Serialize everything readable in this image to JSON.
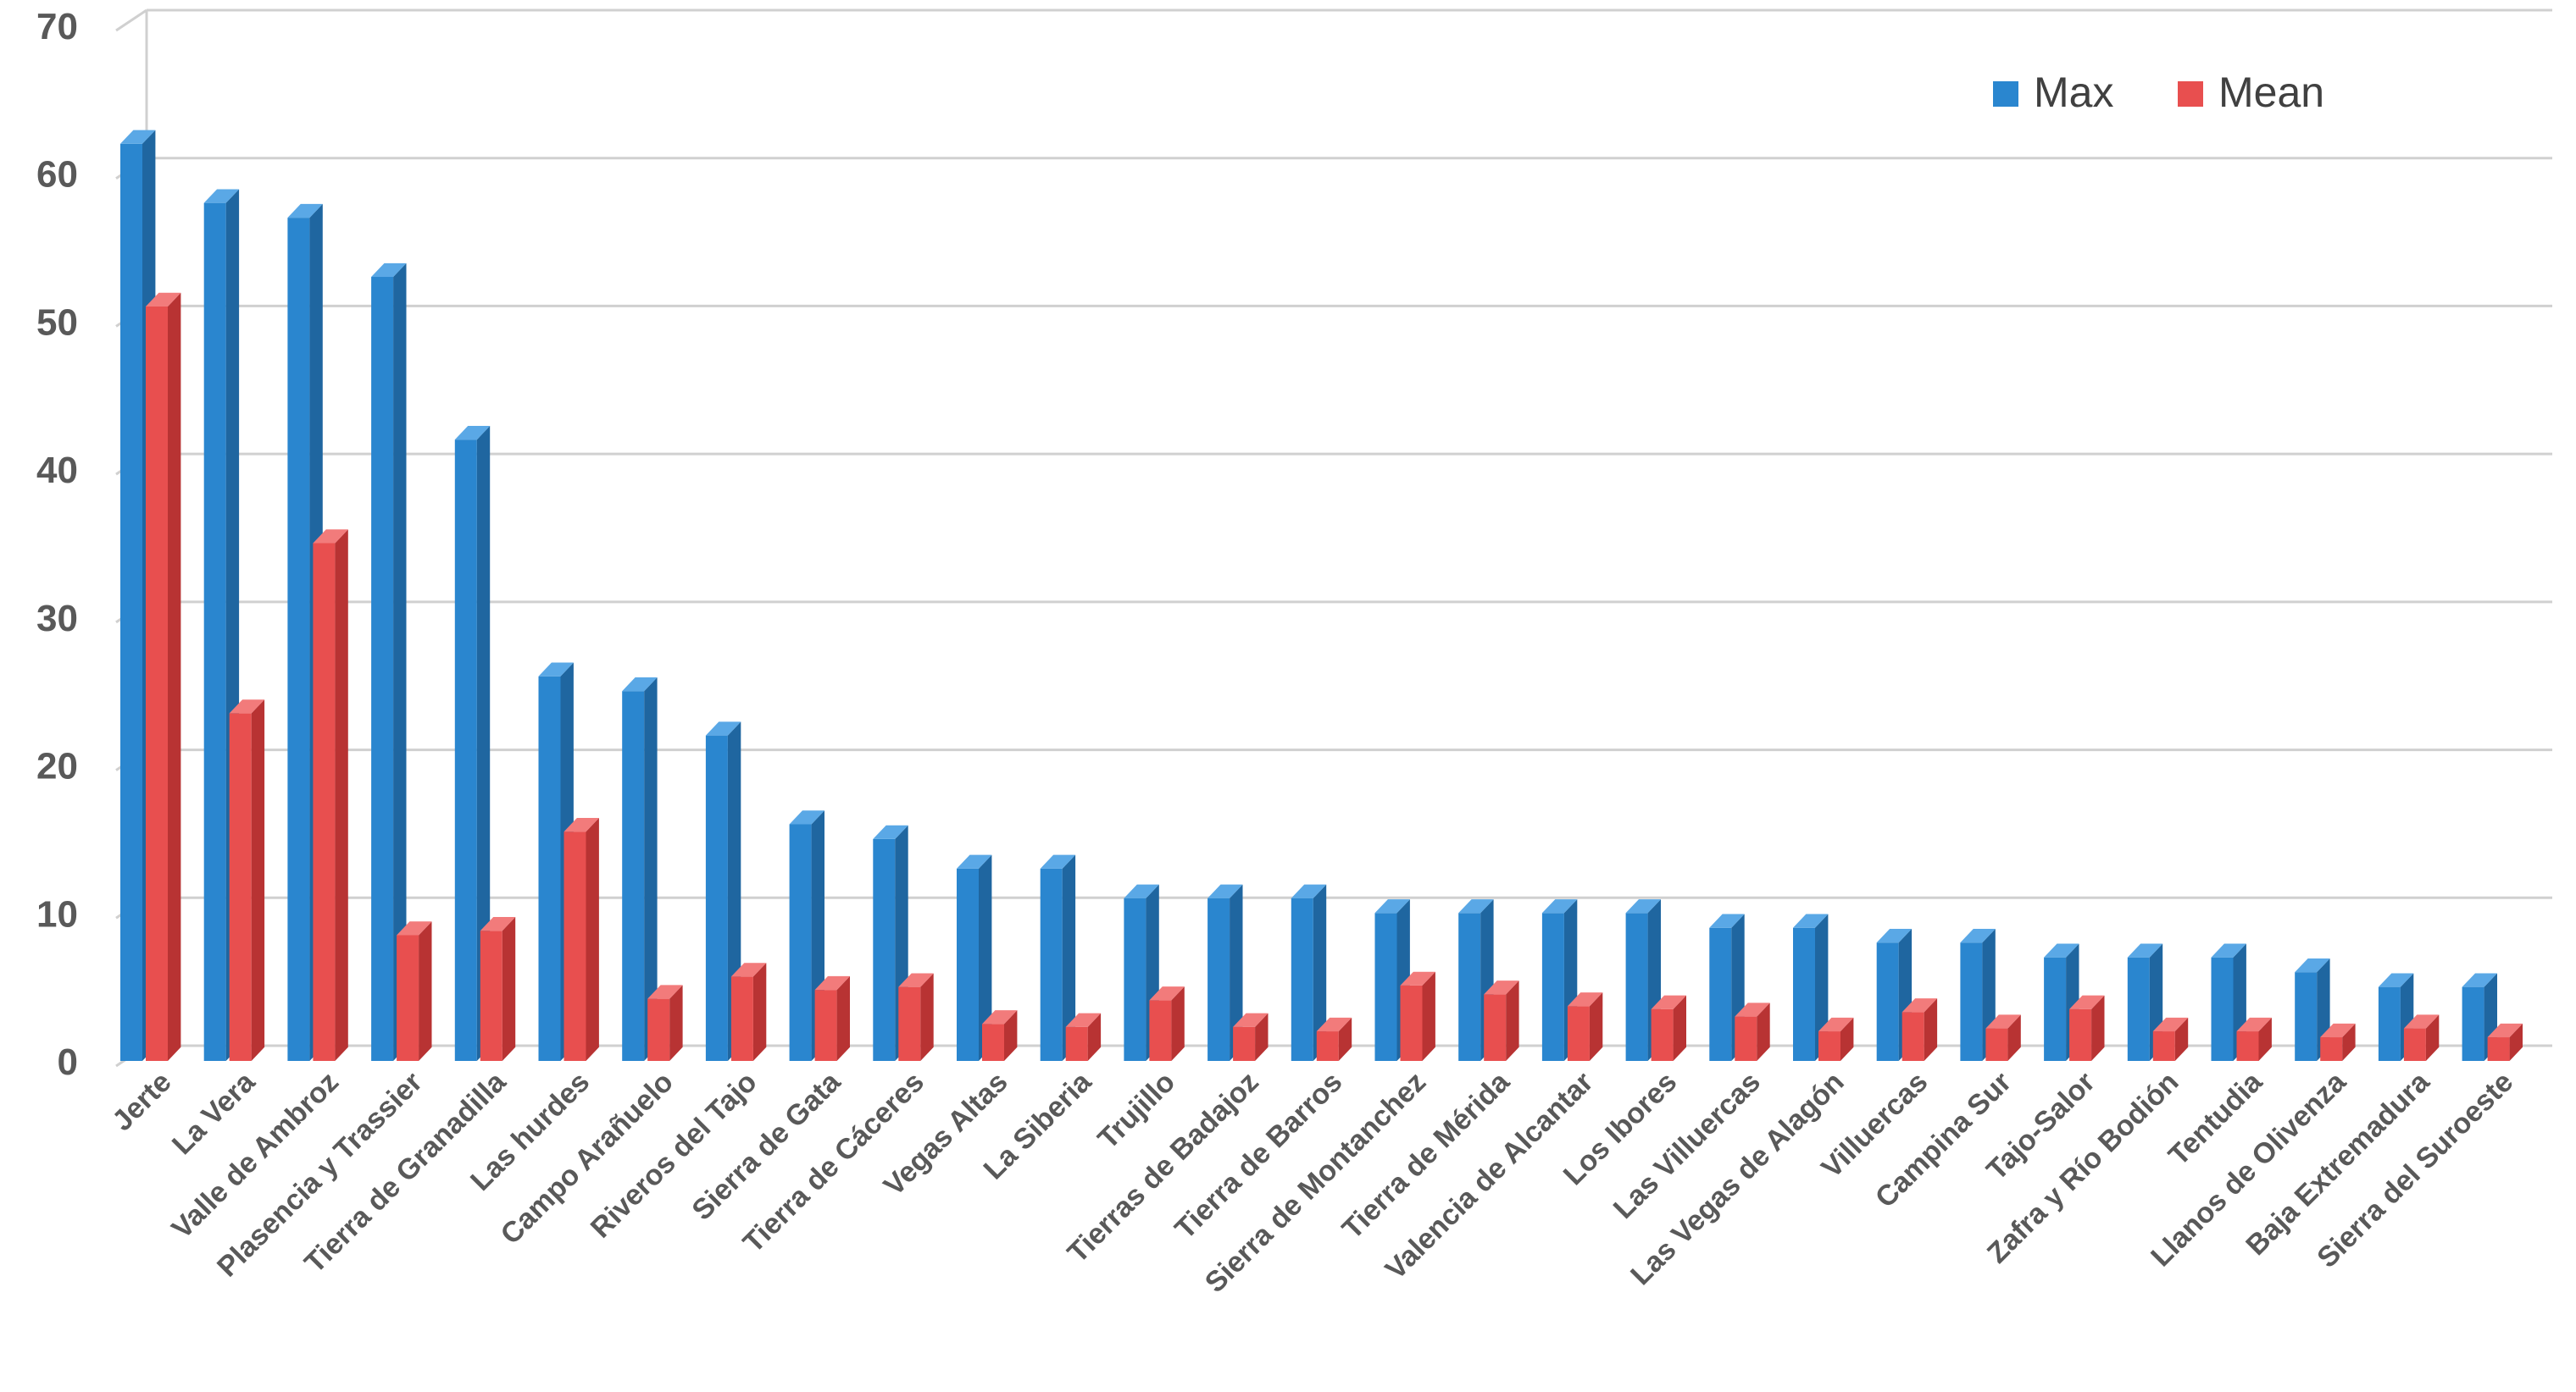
{
  "chart_data": {
    "type": "bar",
    "title": "",
    "xlabel": "",
    "ylabel": "",
    "ylim": [
      0,
      70
    ],
    "yticks": [
      0,
      10,
      20,
      30,
      40,
      50,
      60,
      70
    ],
    "grid": true,
    "legend_position": "top-right",
    "categories": [
      "Jerte",
      "La Vera",
      "Valle de Ambroz",
      "Plasencia y Trassier",
      "Tierra de Granadilla",
      "Las hurdes",
      "Campo Arañuelo",
      "Riveros del Tajo",
      "Sierra de Gata",
      "Tierra de Cáceres",
      "Vegas Altas",
      "La Siberia",
      "Trujillo",
      "Tierras de Badajoz",
      "Tierra de Barros",
      "Sierra de Montanchez",
      "Tierra de Mérida",
      "Valencia de Alcantar",
      "Los Ibores",
      "Las Villuercas",
      "Las Vegas de Alagón",
      "Villuercas",
      "Campina Sur",
      "Tajo-Salor",
      "Zafra y Río Bodión",
      "Tentudia",
      "Llanos de Olivenza",
      "Baja Extremadura",
      "Sierra del Suroeste"
    ],
    "series": [
      {
        "name": "Max",
        "color": "#2a86cf",
        "side_color": "#1f66a0",
        "top_color": "#5aa8e6",
        "values": [
          62,
          58,
          57,
          53,
          42,
          26,
          25,
          22,
          16,
          15,
          13,
          13,
          11,
          11,
          11,
          10,
          10,
          10,
          10,
          9,
          9,
          8,
          8,
          7,
          7,
          7,
          6,
          5,
          5
        ]
      },
      {
        "name": "Mean",
        "color": "#e84f4f",
        "side_color": "#b83333",
        "top_color": "#f27b7b",
        "values": [
          51,
          23.5,
          35,
          8.5,
          8.8,
          15.5,
          4.2,
          5.7,
          4.8,
          5,
          2.5,
          2.3,
          4.1,
          2.3,
          2,
          5.1,
          4.5,
          3.7,
          3.5,
          3,
          2,
          3.3,
          2.2,
          3.5,
          2,
          2,
          1.6,
          2.2,
          1.6
        ]
      }
    ]
  }
}
